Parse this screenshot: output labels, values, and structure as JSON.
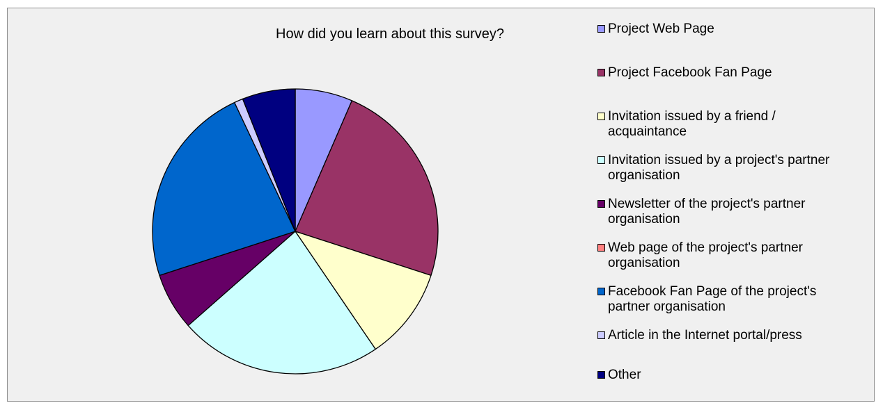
{
  "chart_data": {
    "type": "pie",
    "title": "How did you learn about this survey?",
    "legend_position": "right",
    "slices": [
      {
        "label": "Project Web Page",
        "value": 6.5,
        "color": "#9999ff"
      },
      {
        "label": "Project Facebook Fan Page",
        "value": 23.5,
        "color": "#993366"
      },
      {
        "label": "Invitation issued by a friend / acquaintance",
        "value": 10.5,
        "color": "#ffffcc"
      },
      {
        "label": "Invitation issued by a project's partner organisation",
        "value": 23.0,
        "color": "#ccffff"
      },
      {
        "label": "Newsletter of the project's partner organisation",
        "value": 6.5,
        "color": "#660066"
      },
      {
        "label": "Web page of the project's partner organisation",
        "value": 0,
        "color": "#ff8080"
      },
      {
        "label": "Facebook Fan Page of the project's partner organisation",
        "value": 23.0,
        "color": "#0066cc"
      },
      {
        "label": "Article in the Internet portal/press",
        "value": 1.0,
        "color": "#ccccff"
      },
      {
        "label": "Other",
        "value": 6.0,
        "color": "#000080"
      }
    ]
  }
}
